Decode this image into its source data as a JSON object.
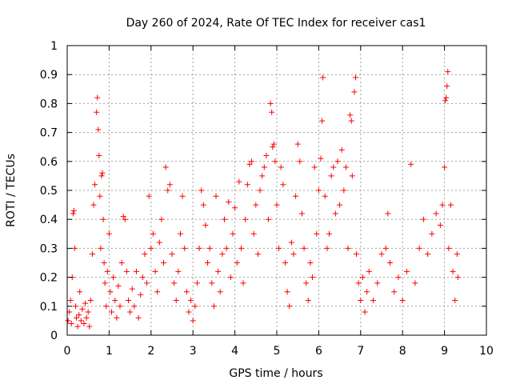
{
  "chart_data": {
    "type": "scatter",
    "title": "Day 260 of 2024, Rate Of TEC Index for receiver cas1",
    "xlabel": "GPS time / hours",
    "ylabel": "ROTI / TECUs",
    "xlim": [
      0,
      10
    ],
    "ylim": [
      0,
      1
    ],
    "x_ticks": [
      "0",
      "1",
      "2",
      "3",
      "4",
      "5",
      "6",
      "7",
      "8",
      "9",
      "10"
    ],
    "y_ticks": [
      "0",
      "0.1",
      "0.2",
      "0.3",
      "0.4",
      "0.5",
      "0.6",
      "0.7",
      "0.8",
      "0.9",
      "1"
    ],
    "grid": true,
    "marker": "+",
    "color": "#ff0000",
    "series": [
      {
        "points": [
          [
            0.02,
            0.05
          ],
          [
            0.05,
            0.08
          ],
          [
            0.08,
            0.12
          ],
          [
            0.1,
            0.04
          ],
          [
            0.12,
            0.2
          ],
          [
            0.14,
            0.42
          ],
          [
            0.16,
            0.43
          ],
          [
            0.18,
            0.3
          ],
          [
            0.2,
            0.1
          ],
          [
            0.22,
            0.06
          ],
          [
            0.25,
            0.03
          ],
          [
            0.28,
            0.07
          ],
          [
            0.3,
            0.15
          ],
          [
            0.33,
            0.05
          ],
          [
            0.36,
            0.09
          ],
          [
            0.4,
            0.04
          ],
          [
            0.43,
            0.11
          ],
          [
            0.46,
            0.06
          ],
          [
            0.5,
            0.08
          ],
          [
            0.53,
            0.03
          ],
          [
            0.56,
            0.12
          ],
          [
            0.6,
            0.28
          ],
          [
            0.63,
            0.45
          ],
          [
            0.66,
            0.52
          ],
          [
            0.7,
            0.77
          ],
          [
            0.72,
            0.82
          ],
          [
            0.74,
            0.71
          ],
          [
            0.76,
            0.62
          ],
          [
            0.78,
            0.48
          ],
          [
            0.8,
            0.3
          ],
          [
            0.82,
            0.55
          ],
          [
            0.84,
            0.56
          ],
          [
            0.86,
            0.4
          ],
          [
            0.88,
            0.25
          ],
          [
            0.9,
            0.18
          ],
          [
            0.93,
            0.1
          ],
          [
            0.96,
            0.22
          ],
          [
            1.0,
            0.35
          ],
          [
            1.03,
            0.15
          ],
          [
            1.06,
            0.08
          ],
          [
            1.1,
            0.2
          ],
          [
            1.14,
            0.12
          ],
          [
            1.18,
            0.06
          ],
          [
            1.22,
            0.17
          ],
          [
            1.26,
            0.1
          ],
          [
            1.3,
            0.25
          ],
          [
            1.34,
            0.41
          ],
          [
            1.38,
            0.4
          ],
          [
            1.42,
            0.22
          ],
          [
            1.46,
            0.12
          ],
          [
            1.5,
            0.08
          ],
          [
            1.55,
            0.16
          ],
          [
            1.6,
            0.1
          ],
          [
            1.65,
            0.22
          ],
          [
            1.7,
            0.06
          ],
          [
            1.75,
            0.14
          ],
          [
            1.8,
            0.2
          ],
          [
            1.85,
            0.28
          ],
          [
            1.9,
            0.18
          ],
          [
            1.95,
            0.48
          ],
          [
            2.0,
            0.3
          ],
          [
            2.05,
            0.35
          ],
          [
            2.1,
            0.22
          ],
          [
            2.15,
            0.15
          ],
          [
            2.2,
            0.32
          ],
          [
            2.25,
            0.4
          ],
          [
            2.3,
            0.25
          ],
          [
            2.35,
            0.58
          ],
          [
            2.4,
            0.5
          ],
          [
            2.45,
            0.52
          ],
          [
            2.5,
            0.28
          ],
          [
            2.55,
            0.18
          ],
          [
            2.6,
            0.12
          ],
          [
            2.65,
            0.22
          ],
          [
            2.7,
            0.35
          ],
          [
            2.75,
            0.48
          ],
          [
            2.8,
            0.3
          ],
          [
            2.85,
            0.15
          ],
          [
            2.9,
            0.08
          ],
          [
            2.95,
            0.12
          ],
          [
            3.0,
            0.05
          ],
          [
            3.05,
            0.1
          ],
          [
            3.1,
            0.18
          ],
          [
            3.15,
            0.3
          ],
          [
            3.2,
            0.5
          ],
          [
            3.25,
            0.45
          ],
          [
            3.3,
            0.38
          ],
          [
            3.35,
            0.25
          ],
          [
            3.4,
            0.3
          ],
          [
            3.45,
            0.18
          ],
          [
            3.5,
            0.1
          ],
          [
            3.55,
            0.48
          ],
          [
            3.6,
            0.22
          ],
          [
            3.65,
            0.15
          ],
          [
            3.7,
            0.28
          ],
          [
            3.75,
            0.4
          ],
          [
            3.8,
            0.3
          ],
          [
            3.85,
            0.46
          ],
          [
            3.9,
            0.2
          ],
          [
            3.95,
            0.35
          ],
          [
            4.0,
            0.44
          ],
          [
            4.05,
            0.25
          ],
          [
            4.1,
            0.53
          ],
          [
            4.15,
            0.3
          ],
          [
            4.2,
            0.18
          ],
          [
            4.25,
            0.4
          ],
          [
            4.3,
            0.52
          ],
          [
            4.35,
            0.59
          ],
          [
            4.4,
            0.6
          ],
          [
            4.45,
            0.35
          ],
          [
            4.5,
            0.45
          ],
          [
            4.55,
            0.28
          ],
          [
            4.6,
            0.5
          ],
          [
            4.65,
            0.55
          ],
          [
            4.7,
            0.58
          ],
          [
            4.75,
            0.62
          ],
          [
            4.8,
            0.4
          ],
          [
            4.85,
            0.8
          ],
          [
            4.88,
            0.77
          ],
          [
            4.9,
            0.65
          ],
          [
            4.93,
            0.66
          ],
          [
            4.96,
            0.6
          ],
          [
            5.0,
            0.45
          ],
          [
            5.05,
            0.3
          ],
          [
            5.1,
            0.58
          ],
          [
            5.15,
            0.52
          ],
          [
            5.2,
            0.25
          ],
          [
            5.25,
            0.15
          ],
          [
            5.3,
            0.1
          ],
          [
            5.35,
            0.32
          ],
          [
            5.4,
            0.28
          ],
          [
            5.45,
            0.48
          ],
          [
            5.5,
            0.66
          ],
          [
            5.55,
            0.6
          ],
          [
            5.6,
            0.42
          ],
          [
            5.65,
            0.3
          ],
          [
            5.7,
            0.18
          ],
          [
            5.75,
            0.12
          ],
          [
            5.8,
            0.25
          ],
          [
            5.85,
            0.2
          ],
          [
            5.9,
            0.58
          ],
          [
            5.95,
            0.35
          ],
          [
            6.0,
            0.5
          ],
          [
            6.05,
            0.61
          ],
          [
            6.08,
            0.74
          ],
          [
            6.1,
            0.89
          ],
          [
            6.15,
            0.48
          ],
          [
            6.2,
            0.3
          ],
          [
            6.25,
            0.35
          ],
          [
            6.3,
            0.55
          ],
          [
            6.35,
            0.58
          ],
          [
            6.4,
            0.42
          ],
          [
            6.45,
            0.6
          ],
          [
            6.5,
            0.45
          ],
          [
            6.55,
            0.64
          ],
          [
            6.6,
            0.5
          ],
          [
            6.65,
            0.58
          ],
          [
            6.7,
            0.3
          ],
          [
            6.75,
            0.76
          ],
          [
            6.78,
            0.74
          ],
          [
            6.8,
            0.55
          ],
          [
            6.85,
            0.84
          ],
          [
            6.88,
            0.89
          ],
          [
            6.9,
            0.28
          ],
          [
            6.95,
            0.18
          ],
          [
            7.0,
            0.12
          ],
          [
            7.05,
            0.2
          ],
          [
            7.1,
            0.08
          ],
          [
            7.15,
            0.15
          ],
          [
            7.2,
            0.22
          ],
          [
            7.3,
            0.12
          ],
          [
            7.4,
            0.18
          ],
          [
            7.5,
            0.28
          ],
          [
            7.6,
            0.3
          ],
          [
            7.65,
            0.42
          ],
          [
            7.7,
            0.25
          ],
          [
            7.8,
            0.15
          ],
          [
            7.9,
            0.2
          ],
          [
            8.0,
            0.12
          ],
          [
            8.1,
            0.22
          ],
          [
            8.2,
            0.59
          ],
          [
            8.3,
            0.18
          ],
          [
            8.4,
            0.3
          ],
          [
            8.5,
            0.4
          ],
          [
            8.6,
            0.28
          ],
          [
            8.7,
            0.35
          ],
          [
            8.8,
            0.42
          ],
          [
            8.9,
            0.38
          ],
          [
            8.95,
            0.45
          ],
          [
            9.0,
            0.58
          ],
          [
            9.02,
            0.81
          ],
          [
            9.04,
            0.82
          ],
          [
            9.06,
            0.86
          ],
          [
            9.08,
            0.91
          ],
          [
            9.1,
            0.3
          ],
          [
            9.15,
            0.45
          ],
          [
            9.2,
            0.22
          ],
          [
            9.25,
            0.12
          ],
          [
            9.3,
            0.28
          ],
          [
            9.32,
            0.2
          ]
        ]
      }
    ]
  }
}
